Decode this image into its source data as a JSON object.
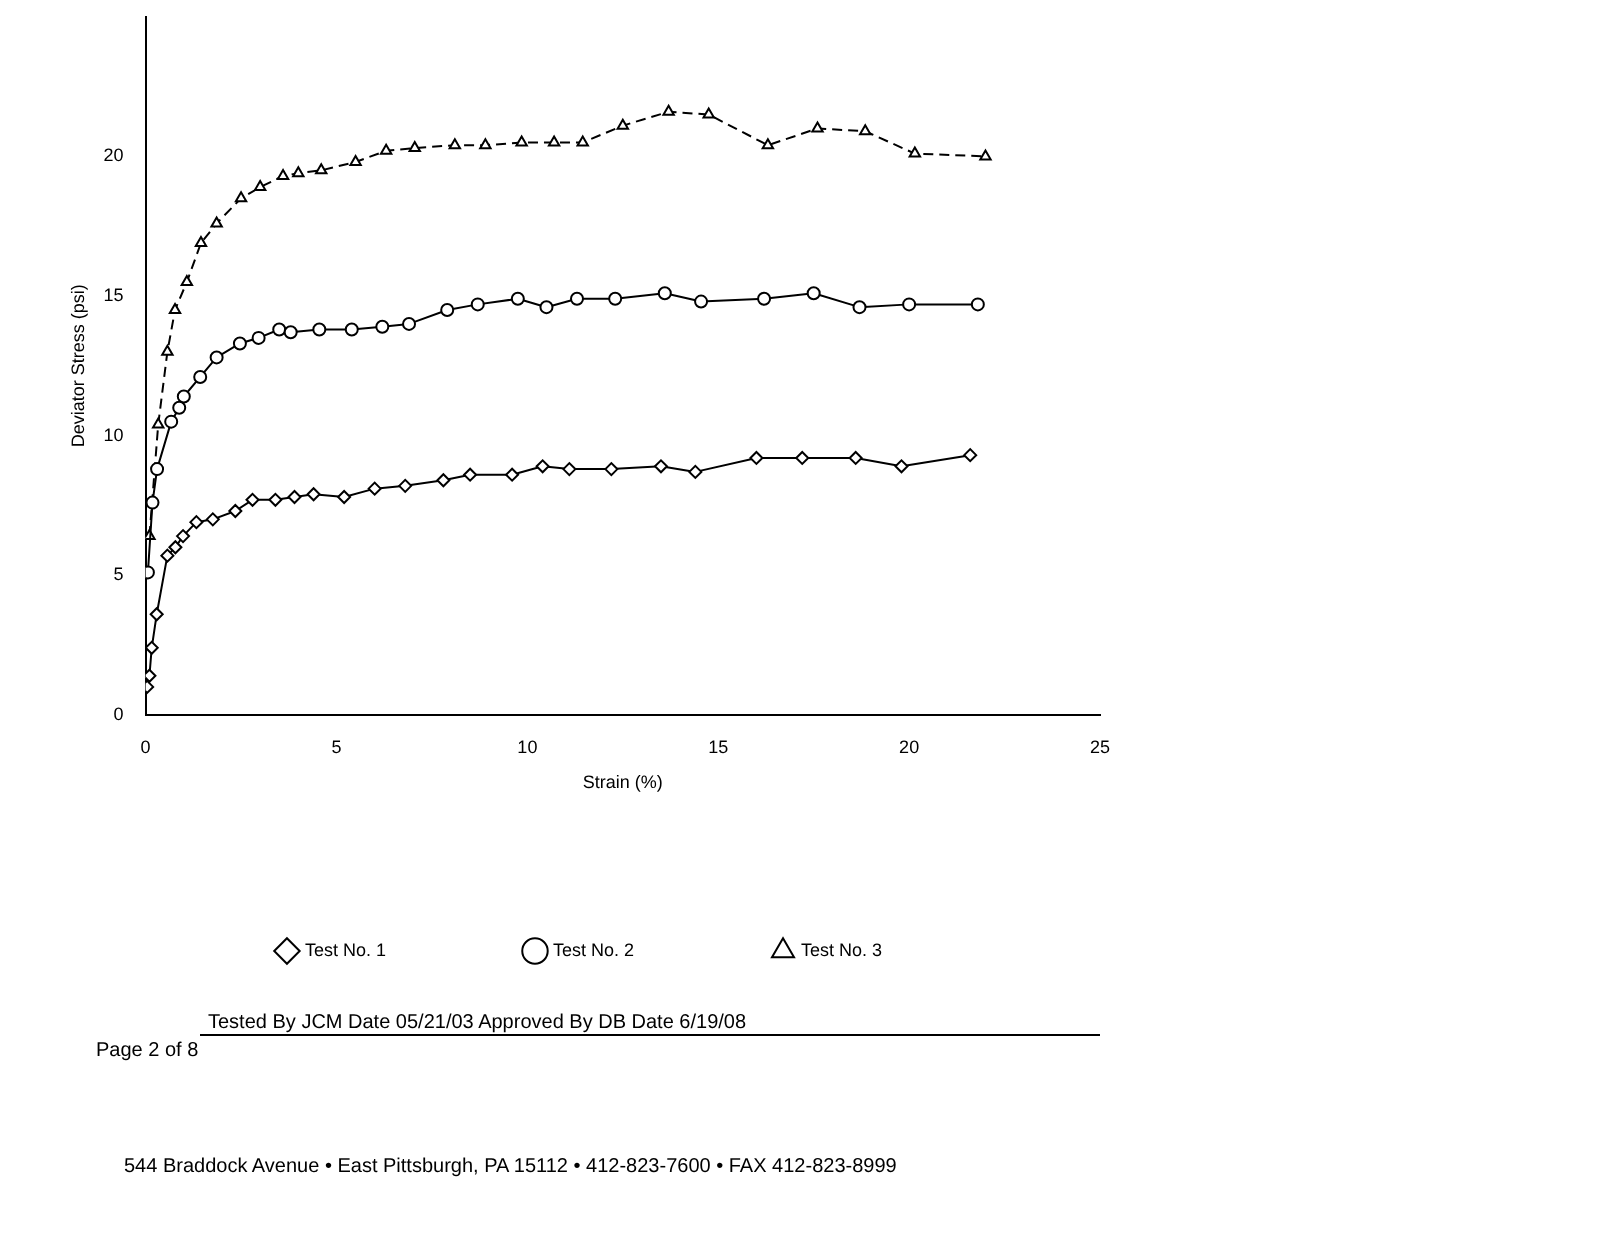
{
  "chart_data": {
    "type": "line",
    "xlabel": "Strain (%)",
    "ylabel": "Deviator Stress (psi)",
    "xlim": [
      0,
      25
    ],
    "xticks": [
      0,
      5,
      10,
      15,
      20,
      25
    ],
    "ylim": [
      0,
      25
    ],
    "yticks": [
      0,
      5,
      10,
      15,
      20
    ],
    "grid": false,
    "legend": "bottom",
    "series": [
      {
        "name": "Test No. 1",
        "color": "#000000",
        "marker": "diamond",
        "line_style": "solid",
        "x": [
          0.04,
          0.1,
          0.16,
          0.29,
          0.57,
          0.78,
          0.98,
          1.33,
          1.76,
          2.35,
          2.8,
          3.4,
          3.9,
          4.4,
          5.2,
          6.0,
          6.8,
          7.8,
          8.5,
          9.6,
          10.4,
          11.1,
          12.2,
          13.5,
          14.4,
          16.0,
          17.2,
          18.6,
          19.8,
          21.6
        ],
        "values": [
          1.0,
          1.4,
          2.4,
          3.6,
          5.7,
          6.0,
          6.4,
          6.9,
          7.0,
          7.3,
          7.7,
          7.7,
          7.8,
          7.9,
          7.8,
          8.1,
          8.2,
          8.4,
          8.6,
          8.6,
          8.9,
          8.8,
          8.8,
          8.9,
          8.7,
          9.2,
          9.2,
          9.2,
          8.9,
          9.3
        ]
      },
      {
        "name": "Test No. 2",
        "color": "#000000",
        "marker": "circle",
        "line_style": "solid",
        "x": [
          0.06,
          0.18,
          0.3,
          0.67,
          0.88,
          1.0,
          1.43,
          1.86,
          2.47,
          2.96,
          3.5,
          3.8,
          4.55,
          5.4,
          6.2,
          6.9,
          7.9,
          8.7,
          9.75,
          10.5,
          11.3,
          12.3,
          13.6,
          14.55,
          16.2,
          17.5,
          18.7,
          20.0,
          21.8
        ],
        "values": [
          5.1,
          7.6,
          8.8,
          10.5,
          11.0,
          11.4,
          12.1,
          12.8,
          13.3,
          13.5,
          13.8,
          13.7,
          13.8,
          13.8,
          13.9,
          14.0,
          14.5,
          14.7,
          14.9,
          14.6,
          14.9,
          14.9,
          15.1,
          14.8,
          14.9,
          15.1,
          14.6,
          14.7,
          14.7
        ]
      },
      {
        "name": "Test No. 3",
        "color": "#000000",
        "marker": "triangle",
        "line_style": "dashed",
        "x": [
          0.1,
          0.33,
          0.57,
          0.77,
          1.08,
          1.45,
          1.86,
          2.5,
          3.0,
          3.6,
          4.0,
          4.6,
          5.5,
          6.3,
          7.05,
          8.1,
          8.9,
          9.85,
          10.7,
          11.45,
          12.5,
          13.7,
          14.75,
          16.3,
          17.6,
          18.85,
          20.15,
          22.0
        ],
        "values": [
          6.4,
          10.4,
          13.0,
          14.5,
          15.5,
          16.9,
          17.6,
          18.5,
          18.9,
          19.3,
          19.4,
          19.5,
          19.8,
          20.2,
          20.3,
          20.4,
          20.4,
          20.5,
          20.5,
          20.5,
          21.1,
          21.6,
          21.5,
          20.4,
          21.0,
          20.9,
          20.1,
          20.0
        ]
      }
    ],
    "annotations": [
      "Tested By JCM Date 05/21/03 Approved By DB Date 6/19/08",
      "Page 2 of 8",
      "544 Braddock Avenue • East Pittsburgh, PA 15112 • 412-823-7600 • FAX 412-823-8999"
    ]
  }
}
